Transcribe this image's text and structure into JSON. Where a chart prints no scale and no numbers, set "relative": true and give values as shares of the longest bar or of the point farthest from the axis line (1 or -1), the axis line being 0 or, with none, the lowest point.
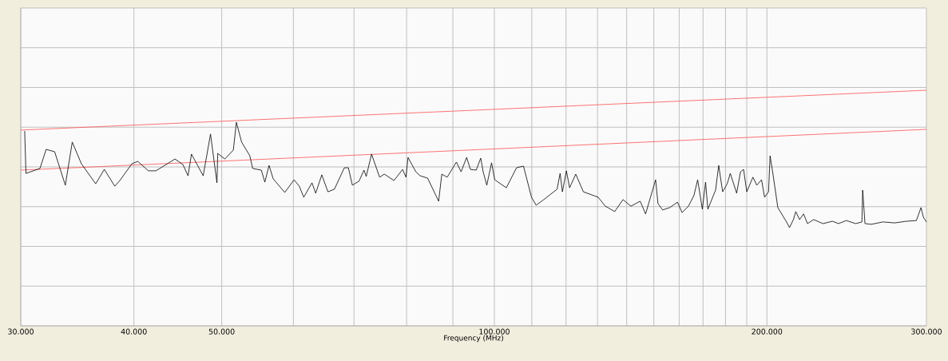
{
  "chart_data": {
    "type": "line",
    "relative": true,
    "log": "x",
    "grid": true,
    "xlabel": "Frequency (MHz)",
    "xlim": [
      30,
      300
    ],
    "xticks": [
      {
        "value": 30,
        "label": "30.000"
      },
      {
        "value": 40,
        "label": "40.000"
      },
      {
        "value": 50,
        "label": "50.000"
      },
      {
        "value": 60,
        "label": null
      },
      {
        "value": 70,
        "label": null
      },
      {
        "value": 80,
        "label": null
      },
      {
        "value": 90,
        "label": null
      },
      {
        "value": 100,
        "label": "100.000"
      },
      {
        "value": 110,
        "label": null
      },
      {
        "value": 120,
        "label": null
      },
      {
        "value": 130,
        "label": null
      },
      {
        "value": 140,
        "label": null
      },
      {
        "value": 150,
        "label": null
      },
      {
        "value": 160,
        "label": null
      },
      {
        "value": 170,
        "label": null
      },
      {
        "value": 180,
        "label": null
      },
      {
        "value": 190,
        "label": null
      },
      {
        "value": 200,
        "label": "200.000"
      },
      {
        "value": 300,
        "label": "300.000"
      }
    ],
    "x": [
      30.3,
      30.4,
      31.5,
      32.0,
      32.7,
      33.6,
      34.2,
      35.0,
      36.3,
      37.1,
      38.1,
      38.6,
      39.8,
      40.4,
      41.5,
      42.3,
      44.4,
      45.3,
      45.9,
      46.3,
      47.7,
      48.6,
      49.4,
      49.5,
      50.4,
      51.5,
      51.9,
      52.6,
      53.7,
      54.1,
      55.3,
      55.8,
      56.4,
      57.0,
      58.7,
      60.1,
      60.9,
      61.6,
      62.9,
      63.5,
      64.5,
      65.5,
      66.6,
      68.3,
      69.0,
      69.7,
      70.9,
      71.8,
      72.2,
      73.2,
      74.7,
      75.6,
      77.5,
      79.2,
      79.9,
      80.3,
      81.9,
      82.8,
      84.4,
      86.8,
      87.5,
      88.7,
      90.8,
      91.9,
      93.2,
      94.1,
      95.5,
      96.6,
      97.2,
      98.1,
      99.3,
      100.1,
      103.1,
      105.8,
      107.7,
      109.9,
      111.2,
      113.4,
      117.3,
      118.2,
      118.9,
      120.1,
      121.1,
      123.0,
      125.4,
      130.2,
      132.6,
      135.8,
      138.7,
      141.5,
      144.9,
      146.9,
      150.7,
      151.6,
      153.4,
      156.2,
      159.3,
      161.2,
      163.8,
      166.1,
      167.7,
      169.7,
      171.1,
      172.1,
      175.5,
      176.9,
      178.7,
      180.8,
      182.2,
      185.2,
      187.0,
      188.5,
      190.0,
      193.0,
      194.9,
      197.3,
      198.8,
      200.8,
      201.6,
      203.2,
      205.6,
      210.2,
      211.8,
      213.9,
      215.2,
      217.3,
      219.5,
      221.7,
      225.2,
      230.6,
      236.2,
      239.9,
      244.7,
      250.6,
      254.6,
      255.1,
      256.6,
      260.7,
      268.6,
      276.7,
      285.0,
      292.4,
      295.9,
      297.7,
      300
    ],
    "series": [
      {
        "color": "#000000",
        "values": [
          0.827,
          0.647,
          0.668,
          0.749,
          0.739,
          0.597,
          0.78,
          0.688,
          0.603,
          0.664,
          0.593,
          0.617,
          0.688,
          0.698,
          0.658,
          0.658,
          0.708,
          0.685,
          0.637,
          0.729,
          0.637,
          0.814,
          0.607,
          0.732,
          0.708,
          0.746,
          0.864,
          0.78,
          0.722,
          0.668,
          0.661,
          0.61,
          0.681,
          0.624,
          0.566,
          0.62,
          0.593,
          0.546,
          0.607,
          0.563,
          0.641,
          0.569,
          0.58,
          0.671,
          0.671,
          0.597,
          0.614,
          0.661,
          0.634,
          0.729,
          0.631,
          0.644,
          0.617,
          0.664,
          0.631,
          0.715,
          0.654,
          0.637,
          0.627,
          0.529,
          0.644,
          0.631,
          0.695,
          0.654,
          0.715,
          0.664,
          0.661,
          0.712,
          0.654,
          0.597,
          0.692,
          0.62,
          0.586,
          0.671,
          0.678,
          0.546,
          0.512,
          0.536,
          0.58,
          0.647,
          0.569,
          0.658,
          0.586,
          0.644,
          0.569,
          0.546,
          0.508,
          0.485,
          0.536,
          0.508,
          0.529,
          0.475,
          0.62,
          0.519,
          0.492,
          0.502,
          0.525,
          0.481,
          0.508,
          0.553,
          0.62,
          0.495,
          0.61,
          0.495,
          0.576,
          0.681,
          0.569,
          0.603,
          0.647,
          0.563,
          0.654,
          0.664,
          0.569,
          0.631,
          0.597,
          0.62,
          0.546,
          0.569,
          0.722,
          0.637,
          0.502,
          0.441,
          0.417,
          0.451,
          0.485,
          0.451,
          0.475,
          0.434,
          0.451,
          0.434,
          0.444,
          0.434,
          0.447,
          0.434,
          0.441,
          0.576,
          0.434,
          0.431,
          0.441,
          0.437,
          0.444,
          0.447,
          0.502,
          0.461,
          0.441
        ]
      },
      {
        "type": "line",
        "color": "#ff5050",
        "x": [
          30,
          100,
          300
        ],
        "values": [
          0.831,
          0.919,
          1.0
        ]
      },
      {
        "type": "line",
        "color": "#ff5050",
        "x": [
          30,
          100,
          300
        ],
        "values": [
          0.661,
          0.751,
          0.834
        ]
      }
    ]
  }
}
